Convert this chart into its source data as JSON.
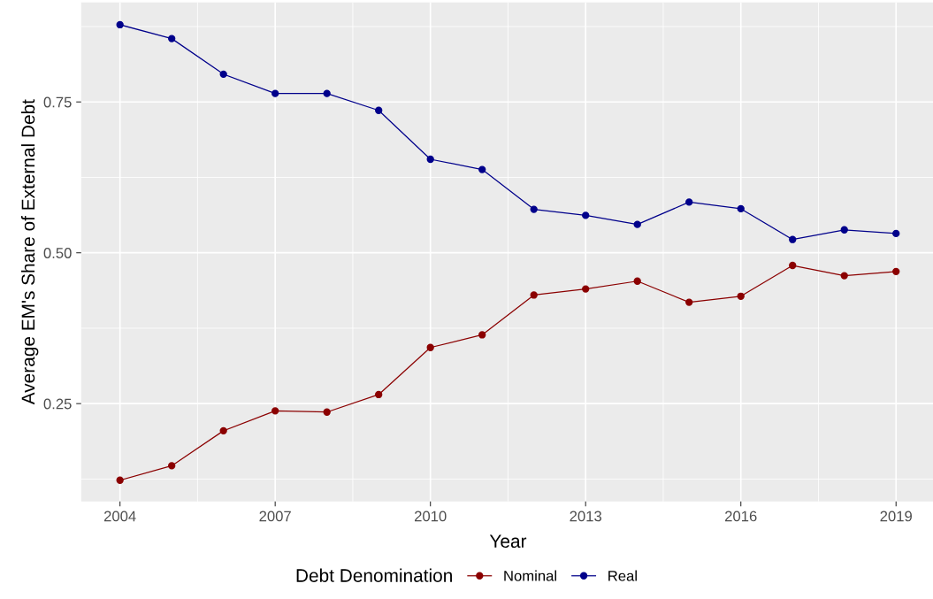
{
  "chart_data": {
    "type": "line",
    "xlabel": "Year",
    "ylabel": "Average EM's Share of External Debt",
    "legend_title": "Debt Denomination",
    "x": [
      2004,
      2005,
      2006,
      2007,
      2008,
      2009,
      2010,
      2011,
      2012,
      2013,
      2014,
      2015,
      2016,
      2017,
      2018,
      2019
    ],
    "series": [
      {
        "name": "Nominal",
        "color": "#8b0000",
        "values": [
          0.123,
          0.147,
          0.205,
          0.238,
          0.236,
          0.265,
          0.343,
          0.364,
          0.43,
          0.44,
          0.453,
          0.418,
          0.428,
          0.479,
          0.462,
          0.469
        ]
      },
      {
        "name": "Real",
        "color": "#00008b",
        "values": [
          0.878,
          0.855,
          0.796,
          0.764,
          0.764,
          0.736,
          0.655,
          0.638,
          0.572,
          0.562,
          0.547,
          0.584,
          0.573,
          0.522,
          0.538,
          0.532
        ]
      }
    ],
    "xlim": [
      2003.25,
      2019.75
    ],
    "xticks": [
      2004,
      2007,
      2010,
      2013,
      2016,
      2019
    ],
    "ylim": [
      0.088,
      0.915
    ],
    "yticks": [
      {
        "value": 0.25,
        "label": "0.25"
      },
      {
        "value": 0.5,
        "label": "0.50"
      },
      {
        "value": 0.75,
        "label": "0.75"
      }
    ],
    "grid": true,
    "legend": "bottom",
    "marker": "circle",
    "line_style": "solid"
  }
}
